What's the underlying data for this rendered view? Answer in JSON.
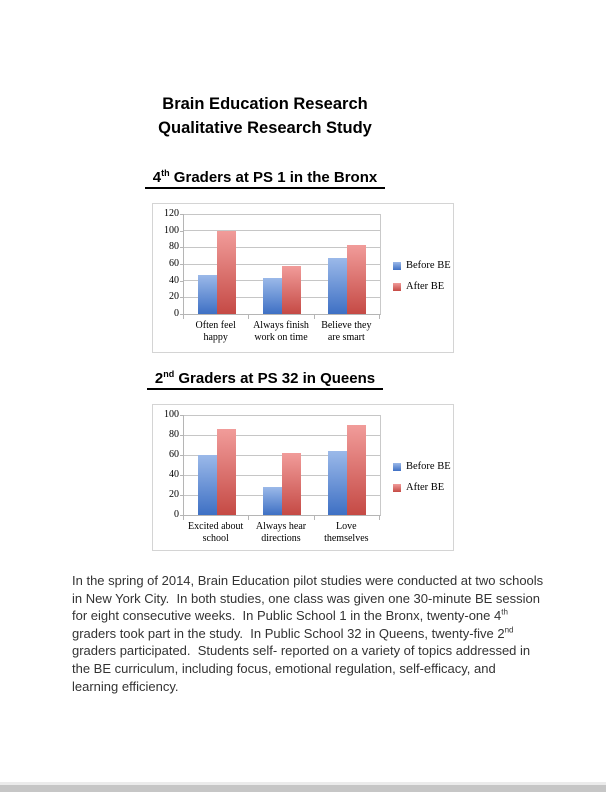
{
  "page": {
    "title_line1": "Brain Education Research",
    "title_line2": "Qualitative Research Study"
  },
  "headings": [
    {
      "num": "4",
      "ord": "th",
      "rest": " Graders at PS 1 in the Bronx"
    },
    {
      "num": "2",
      "ord": "nd",
      "rest": " Graders at PS 32 in Queens"
    }
  ],
  "chart_data": [
    {
      "type": "bar",
      "title": "4th Graders at PS 1 in the Bronx",
      "categories": [
        "Often feel happy",
        "Always finish work on time",
        "Believe they are smart"
      ],
      "categories_wrapped": [
        "Often feel\nhappy",
        "Always finish\nwork on time",
        "Believe they\nare smart"
      ],
      "series": [
        {
          "name": "Before BE",
          "values": [
            47,
            43,
            67
          ]
        },
        {
          "name": "After BE",
          "values": [
            100,
            58,
            83
          ]
        }
      ],
      "ylim": [
        0,
        120
      ],
      "ytick_step": 20,
      "grid": true,
      "legend_position": "right"
    },
    {
      "type": "bar",
      "title": "2nd Graders at PS 32 in Queens",
      "categories": [
        "Excited about school",
        "Always hear directions",
        "Love themselves"
      ],
      "categories_wrapped": [
        "Excited about\nschool",
        "Always hear\ndirections",
        "Love\nthemselves"
      ],
      "series": [
        {
          "name": "Before BE",
          "values": [
            60,
            28,
            64
          ]
        },
        {
          "name": "After BE",
          "values": [
            86,
            62,
            90
          ]
        }
      ],
      "ylim": [
        0,
        100
      ],
      "ytick_step": 20,
      "grid": true,
      "legend_position": "right"
    }
  ],
  "colors": {
    "before_top": "#9bb9e9",
    "before_bottom": "#3e70c4",
    "after_top": "#f19c9a",
    "after_bottom": "#c54a45",
    "gridline": "#c6c6c6",
    "chart_border": "#d4d4d4"
  },
  "paragraph": {
    "seg1": "In the spring of 2014, Brain Education pilot studies were conducted at two schools\nin New York City.  In both studies, one class was given one 30-minute BE session\nfor eight consecutive weeks.  In Public School 1 in the Bronx, twenty-one 4",
    "sup1": "th",
    "seg2": "\ngraders took part in the study.  In Public School 32 in Queens, twenty-five 2",
    "sup2": "nd",
    "seg3": "\ngraders participated.  Students self- reported on a variety of topics addressed in\nthe BE curriculum, including focus, emotional regulation, self-efficacy, and\nlearning efficiency."
  }
}
